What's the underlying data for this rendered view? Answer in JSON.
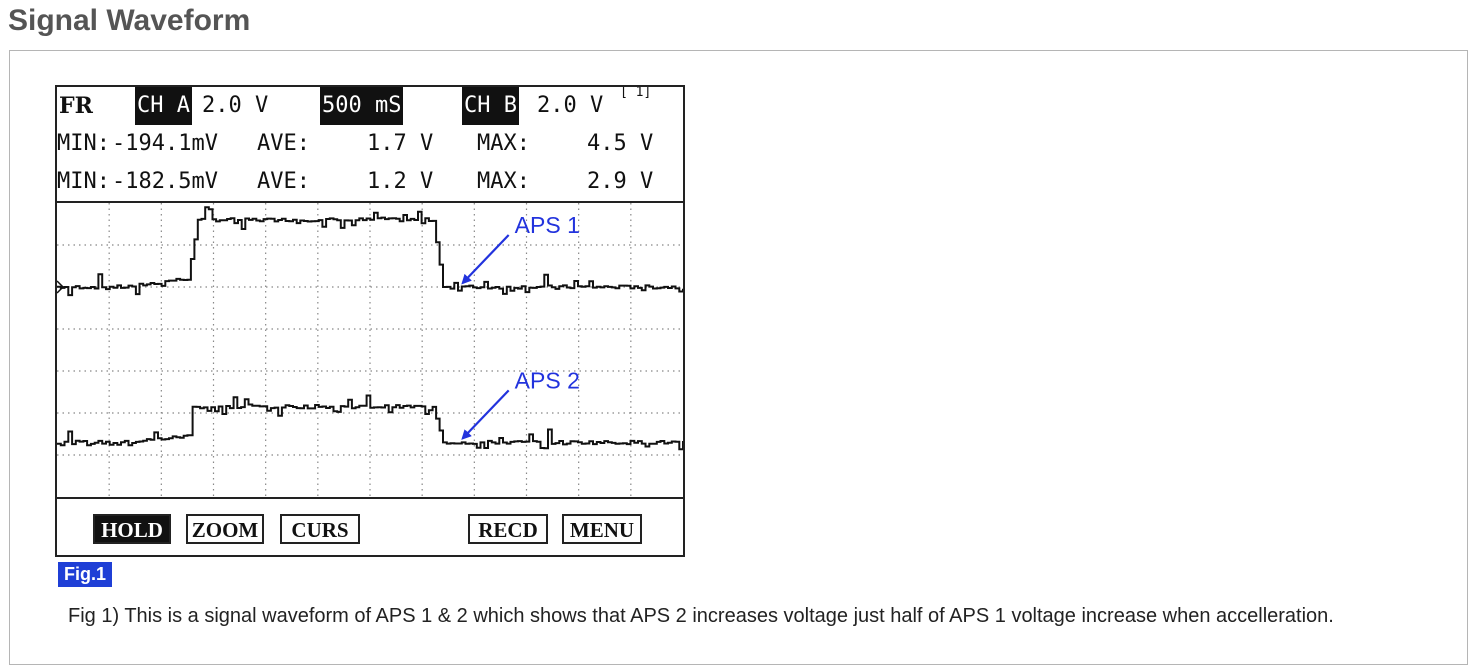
{
  "section": {
    "title": "Signal Waveform"
  },
  "scope": {
    "header": {
      "mode": "FR",
      "ch_a_label": "CH A",
      "ch_a_scale": "2.0 V",
      "timebase": "500 mS",
      "ch_b_label": "CH B",
      "ch_b_scale": "2.0 V",
      "screen_ref": "[ 1]",
      "row1": {
        "min_label": "MIN:",
        "min_value": "-194.1mV",
        "ave_label": "AVE:",
        "ave_value": "1.7 V",
        "max_label": "MAX:",
        "max_value": "4.5 V"
      },
      "row2": {
        "min_label": "MIN:",
        "min_value": "-182.5mV",
        "ave_label": "AVE:",
        "ave_value": "1.2 V",
        "max_label": "MAX:",
        "max_value": "2.9 V"
      }
    },
    "softkeys": {
      "hold": "HOLD",
      "zoom": "ZOOM",
      "curs": "CURS",
      "recd": "RECD",
      "menu": "MENU"
    }
  },
  "chart_data": {
    "type": "line",
    "x_divisions": 12,
    "y_divisions": 7,
    "grid": true,
    "x_unit": "div",
    "y_unit": "div",
    "series": [
      {
        "name": "APS 1",
        "points": [
          [
            0,
            5.0
          ],
          [
            1.3,
            5.0
          ],
          [
            2.5,
            5.2
          ],
          [
            2.7,
            6.6
          ],
          [
            4.1,
            6.6
          ],
          [
            6.5,
            6.6
          ],
          [
            7.2,
            6.6
          ],
          [
            7.4,
            5.0
          ],
          [
            12,
            5.0
          ]
        ]
      },
      {
        "name": "APS 2",
        "points": [
          [
            0,
            1.3
          ],
          [
            1.3,
            1.3
          ],
          [
            2.5,
            1.45
          ],
          [
            2.6,
            2.15
          ],
          [
            4.1,
            2.15
          ],
          [
            6.5,
            2.15
          ],
          [
            7.2,
            2.15
          ],
          [
            7.4,
            1.3
          ],
          [
            12,
            1.3
          ]
        ]
      }
    ],
    "annotations": [
      {
        "text": "APS 1",
        "target_series": "APS 1",
        "at": [
          7.7,
          5.0
        ]
      },
      {
        "text": "APS 2",
        "target_series": "APS 2",
        "at": [
          7.7,
          1.3
        ]
      }
    ],
    "annotation_color": "#2233dd"
  },
  "figure": {
    "badge": "Fig.1",
    "caption": "Fig 1) This is a signal waveform of APS 1 & 2 which shows that APS 2 increases voltage just half of APS 1 voltage increase when accelleration."
  }
}
